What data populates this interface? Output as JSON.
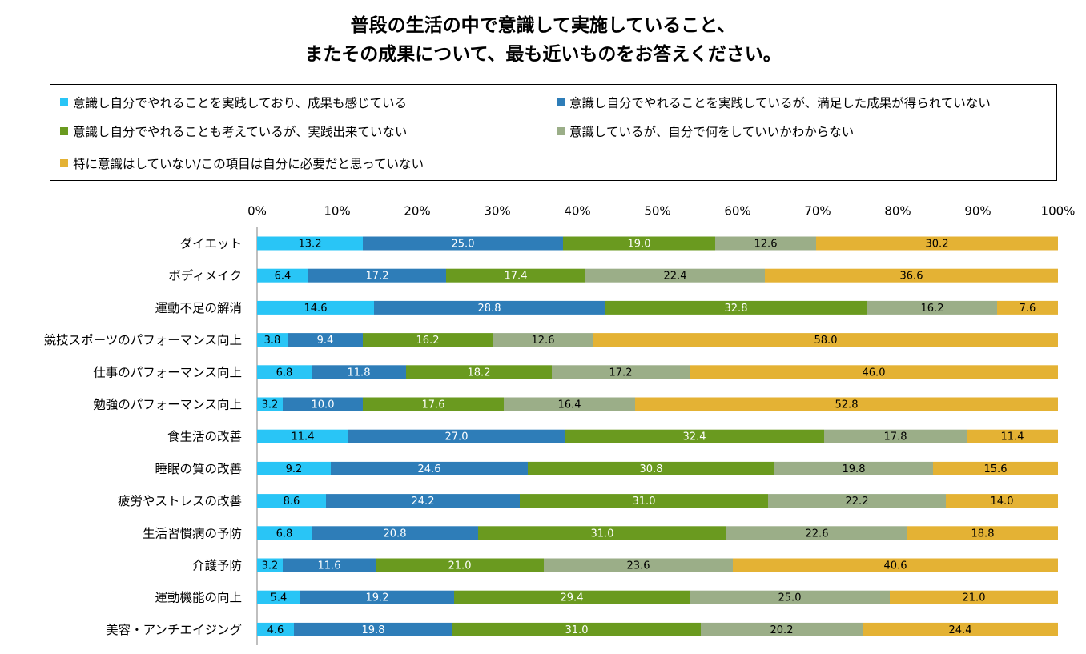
{
  "title_line1": "普段の生活の中で意識して実施していること、",
  "title_line2": "またその成果について、最も近いものをお答えください。",
  "chart_data": {
    "type": "bar",
    "orientation": "horizontal",
    "stacked": true,
    "normalized": true,
    "xlim": [
      0,
      100
    ],
    "xticks": [
      "0%",
      "10%",
      "20%",
      "30%",
      "40%",
      "50%",
      "60%",
      "70%",
      "80%",
      "90%",
      "100%"
    ],
    "grid": false,
    "legend_position": "top",
    "categories": [
      "ダイエット",
      "ボディメイク",
      "運動不足の解消",
      "競技スポーツのパフォーマンス向上",
      "仕事のパフォーマンス向上",
      "勉強のパフォーマンス向上",
      "食生活の改善",
      "睡眠の質の改善",
      "疲労やストレスの改善",
      "生活習慣病の予防",
      "介護予防",
      "運動機能の向上",
      "美容・アンチエイジング"
    ],
    "series": [
      {
        "name": "意識し自分でやれることを実践しており、成果も感じている",
        "color": "#29c5f6",
        "label_color": "#000000",
        "values": [
          13.2,
          6.4,
          14.6,
          3.8,
          6.8,
          3.2,
          11.4,
          9.2,
          8.6,
          6.8,
          3.2,
          5.4,
          4.6
        ]
      },
      {
        "name": "意識し自分でやれることを実践しているが、満足した成果が得られていない",
        "color": "#2e7db8",
        "label_color": "#ffffff",
        "values": [
          25.0,
          17.2,
          28.8,
          9.4,
          11.8,
          10.0,
          27.0,
          24.6,
          24.2,
          20.8,
          11.6,
          19.2,
          19.8
        ]
      },
      {
        "name": "意識し自分でやれることも考えているが、実践出来ていない",
        "color": "#6a9a1f",
        "label_color": "#ffffff",
        "values": [
          19.0,
          17.4,
          32.8,
          16.2,
          18.2,
          17.6,
          32.4,
          30.8,
          31.0,
          31.0,
          21.0,
          29.4,
          31.0
        ]
      },
      {
        "name": "意識しているが、自分で何をしていいかわからない",
        "color": "#9bae88",
        "label_color": "#000000",
        "values": [
          12.6,
          22.4,
          16.2,
          12.6,
          17.2,
          16.4,
          17.8,
          19.8,
          22.2,
          22.6,
          23.6,
          25.0,
          20.2
        ]
      },
      {
        "name": "特に意識はしていない/この項目は自分に必要だと思っていない",
        "color": "#e4b234",
        "label_color": "#000000",
        "values": [
          30.2,
          36.6,
          7.6,
          58.0,
          46.0,
          52.8,
          11.4,
          15.6,
          14.0,
          18.8,
          40.6,
          21.0,
          24.4
        ]
      }
    ]
  }
}
